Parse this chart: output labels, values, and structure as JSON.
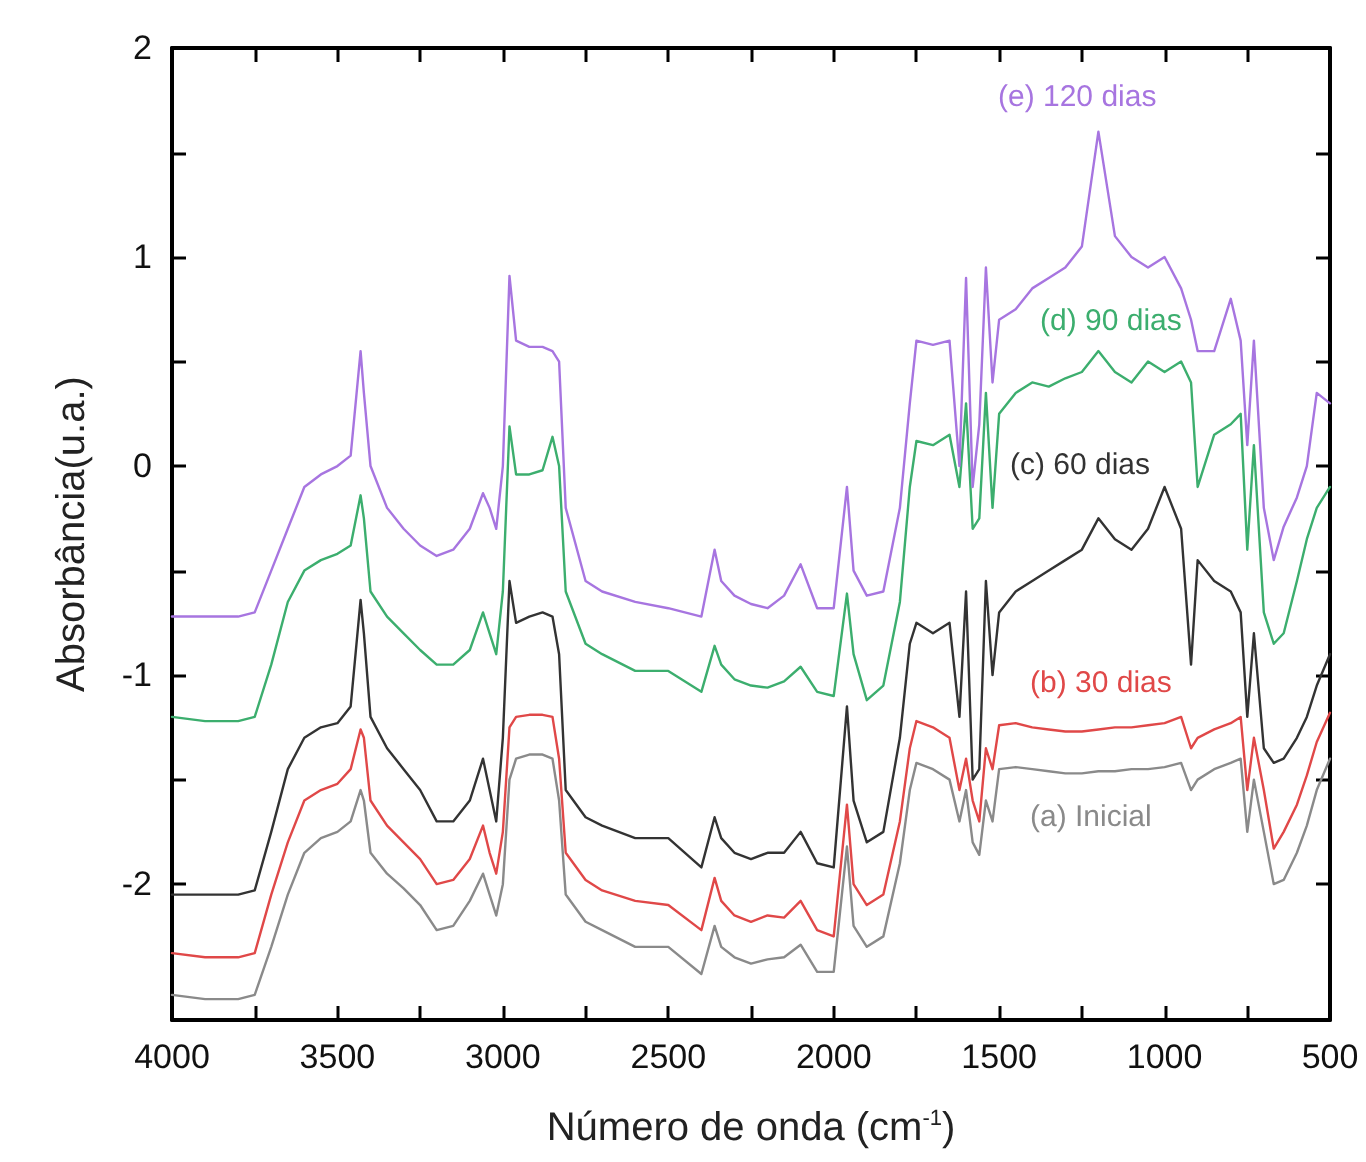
{
  "chart_data": {
    "type": "line",
    "xlabel": "Número de onda (cm$^{-1}$)",
    "ylabel": "Absorbância(u.a.)",
    "xlim": [
      4000,
      500
    ],
    "ylim": [
      -2.65,
      2
    ],
    "xticks": [
      4000,
      {
        "value": 3750,
        "label": null
      },
      3500,
      {
        "value": 3250,
        "label": null
      },
      3000,
      {
        "value": 2750,
        "label": null
      },
      2500,
      {
        "value": 2250,
        "label": null
      },
      2000,
      {
        "value": 1750,
        "label": null
      },
      1500,
      {
        "value": 1250,
        "label": null
      },
      1000,
      {
        "value": 750,
        "label": null
      },
      500
    ],
    "yticks": [
      -2,
      {
        "value": -1.5,
        "label": null
      },
      -1,
      {
        "value": -0.5,
        "label": null
      },
      0,
      {
        "value": 0.5,
        "label": null
      },
      1,
      {
        "value": 1.5,
        "label": null
      },
      2
    ],
    "grid": false,
    "legend": false,
    "marker": "none",
    "line_style": "solid",
    "x": [
      4000,
      3900,
      3800,
      3750,
      3700,
      3650,
      3600,
      3550,
      3500,
      3460,
      3430,
      3420,
      3400,
      3350,
      3300,
      3250,
      3200,
      3150,
      3100,
      3060,
      3040,
      3020,
      3000,
      2980,
      2960,
      2920,
      2880,
      2850,
      2830,
      2810,
      2750,
      2700,
      2600,
      2500,
      2400,
      2360,
      2340,
      2300,
      2250,
      2200,
      2150,
      2100,
      2050,
      2000,
      1960,
      1940,
      1900,
      1850,
      1800,
      1770,
      1750,
      1700,
      1650,
      1620,
      1600,
      1580,
      1560,
      1540,
      1520,
      1500,
      1450,
      1400,
      1350,
      1300,
      1250,
      1200,
      1150,
      1100,
      1050,
      1000,
      950,
      920,
      900,
      850,
      800,
      770,
      750,
      730,
      700,
      670,
      640,
      600,
      570,
      540,
      500
    ],
    "series": [
      {
        "name": "(a) Inicial",
        "color": "#8a8a8a",
        "values": [
          -2.53,
          -2.55,
          -2.55,
          -2.53,
          -2.3,
          -2.05,
          -1.85,
          -1.78,
          -1.75,
          -1.7,
          -1.55,
          -1.6,
          -1.85,
          -1.95,
          -2.02,
          -2.1,
          -2.22,
          -2.2,
          -2.08,
          -1.95,
          -2.05,
          -2.15,
          -2.0,
          -1.5,
          -1.4,
          -1.38,
          -1.38,
          -1.4,
          -1.6,
          -2.05,
          -2.18,
          -2.22,
          -2.3,
          -2.3,
          -2.43,
          -2.2,
          -2.3,
          -2.35,
          -2.38,
          -2.36,
          -2.35,
          -2.29,
          -2.42,
          -2.42,
          -1.82,
          -2.2,
          -2.3,
          -2.25,
          -1.9,
          -1.55,
          -1.42,
          -1.45,
          -1.5,
          -1.7,
          -1.55,
          -1.8,
          -1.86,
          -1.6,
          -1.7,
          -1.45,
          -1.44,
          -1.45,
          -1.46,
          -1.47,
          -1.47,
          -1.46,
          -1.46,
          -1.45,
          -1.45,
          -1.44,
          -1.42,
          -1.55,
          -1.5,
          -1.45,
          -1.42,
          -1.4,
          -1.75,
          -1.5,
          -1.75,
          -2.0,
          -1.98,
          -1.85,
          -1.72,
          -1.55,
          -1.4
        ]
      },
      {
        "name": "(b) 30 dias",
        "color": "#e04848",
        "values": [
          -2.33,
          -2.35,
          -2.35,
          -2.33,
          -2.05,
          -1.8,
          -1.6,
          -1.55,
          -1.52,
          -1.45,
          -1.26,
          -1.3,
          -1.6,
          -1.72,
          -1.8,
          -1.88,
          -2.0,
          -1.98,
          -1.88,
          -1.72,
          -1.85,
          -1.95,
          -1.75,
          -1.25,
          -1.2,
          -1.19,
          -1.19,
          -1.2,
          -1.4,
          -1.85,
          -1.98,
          -2.03,
          -2.08,
          -2.1,
          -2.22,
          -1.97,
          -2.08,
          -2.15,
          -2.18,
          -2.15,
          -2.16,
          -2.08,
          -2.22,
          -2.25,
          -1.62,
          -2.0,
          -2.1,
          -2.05,
          -1.7,
          -1.35,
          -1.22,
          -1.25,
          -1.3,
          -1.55,
          -1.4,
          -1.6,
          -1.7,
          -1.35,
          -1.45,
          -1.24,
          -1.23,
          -1.25,
          -1.26,
          -1.27,
          -1.27,
          -1.26,
          -1.25,
          -1.25,
          -1.24,
          -1.23,
          -1.2,
          -1.35,
          -1.3,
          -1.26,
          -1.23,
          -1.2,
          -1.55,
          -1.3,
          -1.55,
          -1.83,
          -1.75,
          -1.62,
          -1.48,
          -1.32,
          -1.18
        ]
      },
      {
        "name": "(c) 60 dias",
        "color": "#333333",
        "values": [
          -2.05,
          -2.05,
          -2.05,
          -2.03,
          -1.75,
          -1.45,
          -1.3,
          -1.25,
          -1.23,
          -1.15,
          -0.64,
          -0.8,
          -1.2,
          -1.35,
          -1.45,
          -1.55,
          -1.7,
          -1.7,
          -1.6,
          -1.4,
          -1.55,
          -1.7,
          -1.3,
          -0.55,
          -0.75,
          -0.72,
          -0.7,
          -0.72,
          -0.9,
          -1.55,
          -1.68,
          -1.72,
          -1.78,
          -1.78,
          -1.92,
          -1.68,
          -1.78,
          -1.85,
          -1.88,
          -1.85,
          -1.85,
          -1.75,
          -1.9,
          -1.92,
          -1.15,
          -1.6,
          -1.8,
          -1.75,
          -1.3,
          -0.85,
          -0.75,
          -0.8,
          -0.75,
          -1.2,
          -0.6,
          -1.5,
          -1.45,
          -0.55,
          -1.0,
          -0.7,
          -0.6,
          -0.55,
          -0.5,
          -0.45,
          -0.4,
          -0.25,
          -0.35,
          -0.4,
          -0.3,
          -0.1,
          -0.3,
          -0.95,
          -0.45,
          -0.55,
          -0.6,
          -0.7,
          -1.2,
          -0.8,
          -1.35,
          -1.42,
          -1.4,
          -1.3,
          -1.2,
          -1.05,
          -0.9
        ]
      },
      {
        "name": "(d) 90 dias",
        "color": "#3cae6e",
        "values": [
          -1.2,
          -1.22,
          -1.22,
          -1.2,
          -0.95,
          -0.65,
          -0.5,
          -0.45,
          -0.42,
          -0.38,
          -0.14,
          -0.25,
          -0.6,
          -0.72,
          -0.8,
          -0.88,
          -0.95,
          -0.95,
          -0.88,
          -0.7,
          -0.8,
          -0.9,
          -0.6,
          0.19,
          -0.04,
          -0.04,
          -0.02,
          0.14,
          0.0,
          -0.6,
          -0.85,
          -0.9,
          -0.98,
          -0.98,
          -1.08,
          -0.86,
          -0.95,
          -1.02,
          -1.05,
          -1.06,
          -1.03,
          -0.96,
          -1.08,
          -1.1,
          -0.61,
          -0.9,
          -1.12,
          -1.05,
          -0.65,
          -0.1,
          0.12,
          0.1,
          0.15,
          -0.1,
          0.3,
          -0.3,
          -0.25,
          0.35,
          -0.2,
          0.25,
          0.35,
          0.4,
          0.38,
          0.42,
          0.45,
          0.55,
          0.45,
          0.4,
          0.5,
          0.45,
          0.5,
          0.4,
          -0.1,
          0.15,
          0.2,
          0.25,
          -0.4,
          0.1,
          -0.7,
          -0.85,
          -0.8,
          -0.55,
          -0.35,
          -0.2,
          -0.1
        ]
      },
      {
        "name": "(e) 120 dias",
        "color": "#a775e0",
        "values": [
          -0.72,
          -0.72,
          -0.72,
          -0.7,
          -0.5,
          -0.3,
          -0.1,
          -0.04,
          0.0,
          0.05,
          0.55,
          0.35,
          0.0,
          -0.2,
          -0.3,
          -0.38,
          -0.43,
          -0.4,
          -0.3,
          -0.13,
          -0.2,
          -0.3,
          0.0,
          0.91,
          0.6,
          0.57,
          0.57,
          0.55,
          0.5,
          -0.2,
          -0.55,
          -0.6,
          -0.65,
          -0.68,
          -0.72,
          -0.4,
          -0.55,
          -0.62,
          -0.66,
          -0.68,
          -0.62,
          -0.47,
          -0.68,
          -0.68,
          -0.1,
          -0.5,
          -0.62,
          -0.6,
          -0.2,
          0.3,
          0.6,
          0.58,
          0.6,
          0.0,
          0.9,
          -0.1,
          0.2,
          0.95,
          0.4,
          0.7,
          0.75,
          0.85,
          0.9,
          0.95,
          1.05,
          1.6,
          1.1,
          1.0,
          0.95,
          1.0,
          0.85,
          0.7,
          0.55,
          0.55,
          0.8,
          0.6,
          0.1,
          0.6,
          -0.2,
          -0.45,
          -0.29,
          -0.15,
          0.0,
          0.35,
          0.3
        ]
      }
    ]
  }
}
